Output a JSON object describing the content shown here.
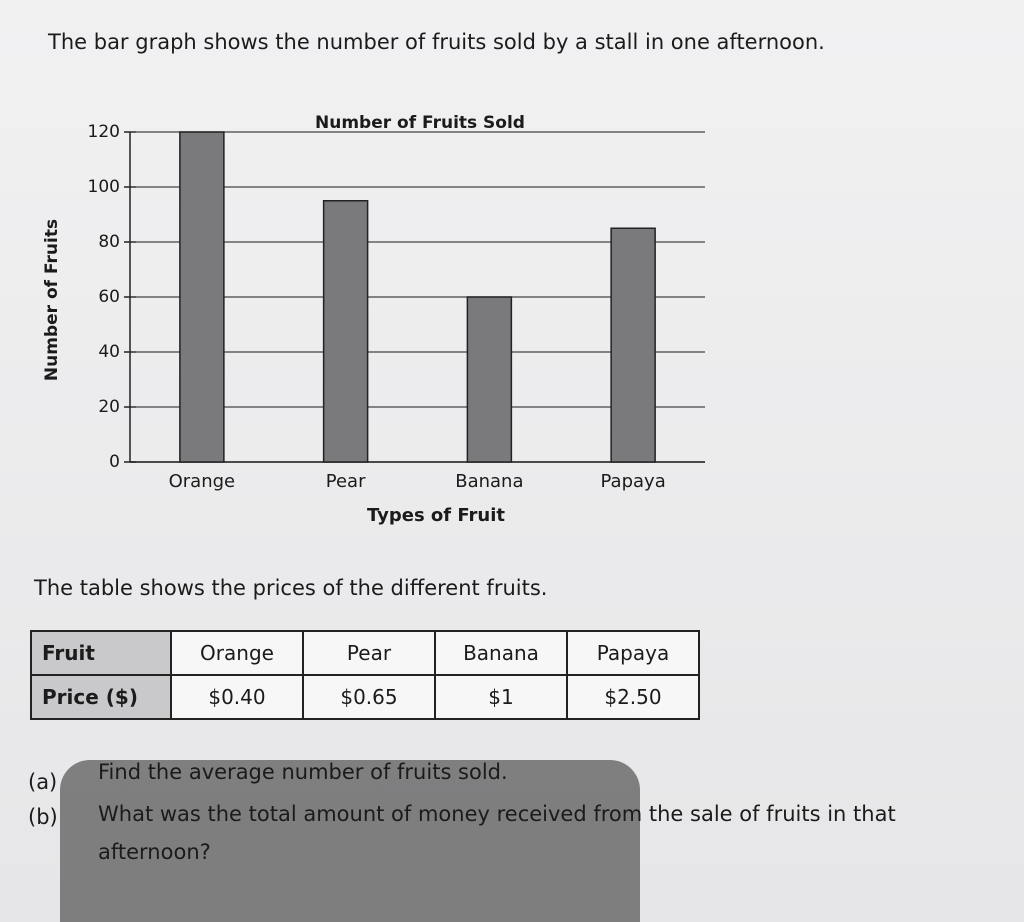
{
  "intro": "The bar graph shows the number of fruits sold by a stall in one afternoon.",
  "chart_data": {
    "type": "bar",
    "title": "Number of Fruits Sold",
    "x_label": "Types of Fruit",
    "y_label": "Number of Fruits",
    "categories": [
      "Orange",
      "Pear",
      "Banana",
      "Papaya"
    ],
    "values": [
      120,
      95,
      60,
      85
    ],
    "color": "#7a7a7c",
    "ylim": [
      0,
      120
    ],
    "yticks": [
      0,
      20,
      40,
      60,
      80,
      100,
      120
    ],
    "grid": true
  },
  "table_intro": "The table shows the prices of the different fruits.",
  "table": {
    "rows": [
      [
        "Fruit",
        "Orange",
        "Pear",
        "Banana",
        "Papaya"
      ],
      [
        "Price ($)",
        "$0.40",
        "$0.65",
        "$1",
        "$2.50"
      ]
    ]
  },
  "questions": [
    {
      "label": "(a)",
      "text": "Find the average number of fruits sold."
    },
    {
      "label": "(b)",
      "text": "What was the total amount of money received from the sale of fruits in that afternoon?"
    }
  ]
}
